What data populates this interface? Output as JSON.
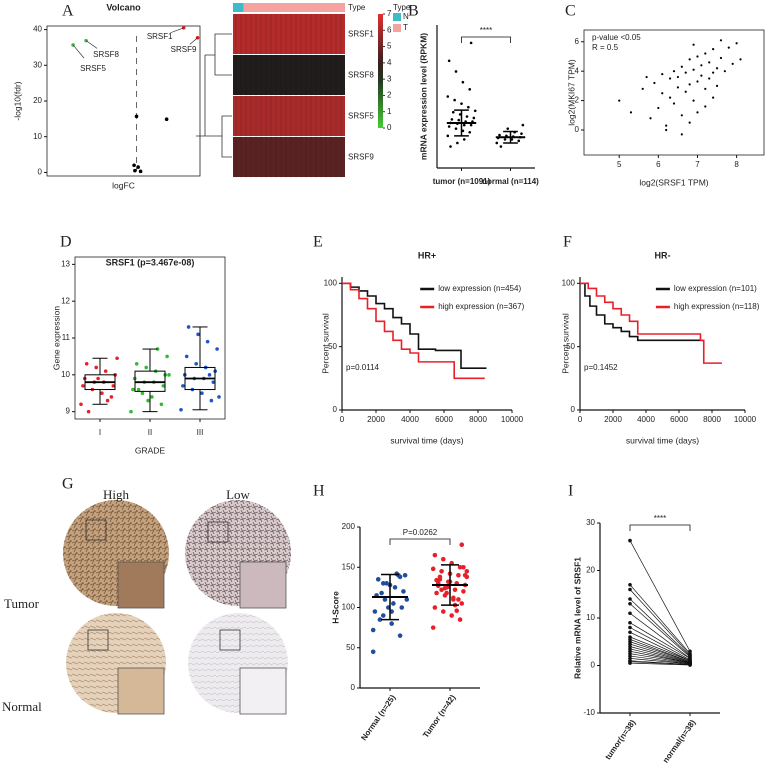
{
  "chart_data": [
    {
      "type": "scatter",
      "panel": "A",
      "title": "Volcano",
      "x_label": "logFC",
      "y_label": "-log10(fdr)",
      "frame": true,
      "xlim": [
        -1.1,
        0.78
      ],
      "ylim": [
        -1,
        41
      ],
      "yticks": [
        0,
        10,
        20,
        30,
        40
      ],
      "vline": 0,
      "x": [
        0.58,
        0.75,
        -0.62,
        -0.78,
        0,
        0.37,
        -0.03,
        0.02,
        0.05,
        -0.02
      ],
      "values": [
        40.5,
        37.7,
        36.9,
        35.7,
        15.7,
        14.9,
        2,
        1.5,
        0.3,
        0.5
      ],
      "colors": [
        "#e02020",
        "#e02020",
        "#44bb44",
        "#44bb44",
        "#000000",
        "#000000",
        "#000000",
        "#000000",
        "#000000",
        "#000000"
      ],
      "point_labels": [
        "SRSF1",
        "SRSF9",
        "SRSF8",
        "SRSF5",
        null,
        null,
        null,
        null,
        null,
        null
      ]
    },
    {
      "type": "heatmap",
      "rows": [
        "SRSF1",
        "SRSF8",
        "SRSF5",
        "SRSF9"
      ],
      "values": [
        6.2,
        3.6,
        6.0,
        4.6
      ],
      "annotation_label": "Type",
      "legend_title": "Type",
      "groups": [
        "N",
        "T"
      ],
      "group_sizes": [
        114,
        1091
      ],
      "group_colors": [
        "#3bbcc8",
        "#f4a3a0"
      ],
      "colorbar_ticks": [
        0,
        1,
        2,
        3,
        4,
        5,
        6,
        7
      ],
      "colorscale": [
        "#44cc33",
        "#1c1c1c",
        "#e03030"
      ]
    },
    {
      "type": "dot",
      "panel": "B",
      "y_label": "mRNA expression level (RPKM)",
      "ylim": [
        0,
        200
      ],
      "categories": [
        "tumor (n=1091)",
        "normal (n=114)"
      ],
      "values": [
        63,
        43
      ],
      "errors": [
        18,
        8
      ],
      "significance": "****",
      "colors": [
        "#000000",
        "#000000"
      ],
      "points": [
        [
          45,
          50,
          52,
          55,
          58,
          60,
          60,
          62,
          63,
          65,
          65,
          67,
          68,
          70,
          72,
          75,
          78,
          80,
          85,
          90,
          95,
          100,
          110,
          120,
          135,
          150,
          175,
          40,
          35,
          30
        ],
        [
          35,
          38,
          40,
          40,
          42,
          43,
          44,
          45,
          46,
          48,
          50,
          55,
          30,
          60
        ]
      ]
    },
    {
      "type": "scatter",
      "panel": "C",
      "x_label": "log2(SRSF1 TPM)",
      "y_label": "log2(MKI67 TPM)",
      "frame": true,
      "annotations": [
        "p-value <0.05",
        "R = 0.5"
      ],
      "color": "#000000",
      "xlim": [
        4.1,
        8.7
      ],
      "xticks": [
        5,
        6,
        7,
        8
      ],
      "ylim": [
        -1.7,
        6.8
      ],
      "yticks": [
        0,
        2,
        4,
        6
      ],
      "x": [
        5.0,
        5.3,
        5.6,
        5.8,
        5.9,
        6.0,
        6.1,
        6.1,
        6.2,
        6.3,
        6.3,
        6.4,
        6.4,
        6.5,
        6.5,
        6.6,
        6.6,
        6.7,
        6.7,
        6.8,
        6.8,
        6.9,
        6.9,
        7.0,
        7.0,
        7.1,
        7.1,
        7.2,
        7.2,
        7.3,
        7.3,
        7.4,
        7.4,
        7.5,
        7.5,
        7.6,
        7.7,
        7.8,
        7.9,
        8.0,
        8.1,
        6.2,
        6.6,
        7.0,
        7.4,
        5.7,
        6.9,
        7.6,
        7.2,
        6.8
      ],
      "values": [
        2.0,
        1.2,
        2.8,
        0.8,
        3.2,
        1.5,
        2.5,
        3.8,
        0.3,
        2.2,
        3.5,
        1.8,
        4.0,
        2.9,
        3.6,
        1.0,
        4.3,
        2.6,
        3.9,
        3.1,
        4.8,
        2.0,
        4.1,
        3.3,
        5.0,
        3.7,
        4.4,
        2.8,
        5.2,
        3.5,
        4.6,
        3.9,
        5.5,
        4.2,
        3.0,
        4.9,
        4.0,
        5.6,
        4.5,
        5.9,
        4.8,
        0.0,
        -0.3,
        1.2,
        2.2,
        3.6,
        5.8,
        6.1,
        1.6,
        0.5
      ]
    },
    {
      "type": "box",
      "panel": "D",
      "title": "SRSF1 (p=3.467e-08)",
      "x_label": "GRADE",
      "y_label": "Gene expression",
      "frame": true,
      "categories": [
        "I",
        "II",
        "III"
      ],
      "colors": [
        "#e8202a",
        "#33bb33",
        "#1f55c8"
      ],
      "ylim": [
        8.8,
        13.2
      ],
      "yticks": [
        9,
        10,
        11,
        12,
        13
      ],
      "whisker_low": [
        9.2,
        9.0,
        9.05
      ],
      "q1": [
        9.6,
        9.55,
        9.6
      ],
      "median": [
        9.8,
        9.8,
        9.9
      ],
      "q3": [
        10.0,
        10.1,
        10.2
      ],
      "whisker_high": [
        10.45,
        10.7,
        11.3
      ],
      "points": [
        [
          9.2,
          9.4,
          9.5,
          9.6,
          9.7,
          9.7,
          9.8,
          9.8,
          9.9,
          10.0,
          10.1,
          10.2,
          10.3,
          10.45,
          9.3,
          9.9,
          9.0
        ],
        [
          9.0,
          9.2,
          9.4,
          9.5,
          9.6,
          9.7,
          9.8,
          9.8,
          9.9,
          10.0,
          10.1,
          10.2,
          10.3,
          10.5,
          10.7,
          9.3,
          9.6,
          10.0
        ],
        [
          9.05,
          9.3,
          9.5,
          9.6,
          9.7,
          9.8,
          9.9,
          9.9,
          10.0,
          10.1,
          10.2,
          10.3,
          10.5,
          10.7,
          10.9,
          11.1,
          11.3,
          9.4,
          10.0
        ]
      ]
    },
    {
      "type": "line",
      "panel": "E",
      "title": "HR+",
      "x_label": "survival time (days)",
      "y_label": "Percent survival",
      "annotation": "p=0.0114",
      "legend": "upper right",
      "xlim": [
        0,
        10000
      ],
      "xticks": [
        0,
        2000,
        4000,
        6000,
        8000,
        10000
      ],
      "ylim": [
        0,
        105
      ],
      "yticks": [
        0,
        50,
        100
      ],
      "series": [
        {
          "name": "low expression (n=454)",
          "color": "#111111",
          "x": [
            0,
            500,
            1000,
            1500,
            2000,
            2500,
            3000,
            3500,
            4000,
            4500,
            5000,
            5500,
            6500,
            7000,
            8500
          ],
          "values": [
            100,
            97,
            94,
            90,
            84,
            80,
            73,
            68,
            60,
            48,
            48,
            47,
            47,
            33,
            33
          ]
        },
        {
          "name": "high expression (n=367)",
          "color": "#e8202a",
          "x": [
            0,
            500,
            1000,
            1500,
            2000,
            2500,
            3000,
            3500,
            4000,
            4500,
            5000,
            6500,
            6600,
            7500,
            8400
          ],
          "values": [
            100,
            95,
            88,
            80,
            70,
            62,
            55,
            48,
            45,
            38,
            38,
            38,
            25,
            25,
            25
          ]
        }
      ]
    },
    {
      "type": "line",
      "panel": "F",
      "title": "HR-",
      "x_label": "survival time (days)",
      "y_label": "Percent survival",
      "annotation": "p=0.1452",
      "legend": "upper right",
      "xlim": [
        0,
        10000
      ],
      "xticks": [
        0,
        2000,
        4000,
        6000,
        8000,
        10000
      ],
      "ylim": [
        0,
        105
      ],
      "yticks": [
        0,
        50,
        100
      ],
      "series": [
        {
          "name": "low expression (n=101)",
          "color": "#111111",
          "x": [
            0,
            300,
            600,
            1000,
            1500,
            2000,
            2500,
            3000,
            3500,
            7500
          ],
          "values": [
            100,
            90,
            82,
            75,
            68,
            65,
            62,
            58,
            55,
            55
          ]
        },
        {
          "name": "high expression (n=118)",
          "color": "#e8202a",
          "x": [
            0,
            500,
            1000,
            1500,
            2000,
            2500,
            3000,
            3500,
            7300,
            7500,
            8600
          ],
          "values": [
            100,
            96,
            90,
            85,
            80,
            75,
            70,
            60,
            55,
            37,
            37
          ]
        }
      ]
    },
    {
      "type": "dot",
      "panel": "H",
      "y_label": "H-Score",
      "ylim": [
        0,
        200
      ],
      "yticks": [
        0,
        50,
        100,
        150,
        200
      ],
      "categories": [
        "Normal (n=25)",
        "Tumor (n=42)"
      ],
      "values": [
        113,
        128
      ],
      "errors": [
        28,
        25
      ],
      "significance": "P=0.0262",
      "colors": [
        "#1f4e9c",
        "#e8202a"
      ],
      "points": [
        [
          45,
          65,
          80,
          90,
          95,
          100,
          105,
          110,
          115,
          120,
          125,
          130,
          135,
          140,
          142,
          100,
          85,
          110,
          140,
          128,
          118,
          72,
          138,
          95,
          130
        ],
        [
          75,
          85,
          90,
          95,
          100,
          105,
          110,
          115,
          118,
          120,
          122,
          125,
          127,
          128,
          130,
          132,
          135,
          138,
          140,
          142,
          145,
          148,
          150,
          155,
          160,
          165,
          178,
          112,
          124,
          134,
          150,
          103,
          118,
          130,
          140,
          96,
          126,
          138,
          145,
          110,
          132,
          122
        ]
      ]
    },
    {
      "type": "slope",
      "panel": "I",
      "y_label": "Relative mRNA level of SRSF1",
      "ylim": [
        -10,
        30
      ],
      "yticks": [
        -10,
        0,
        10,
        20,
        30
      ],
      "categories": [
        "tumor(n=38)",
        "normal(n=38)"
      ],
      "significance": "****",
      "color": "#111111",
      "values": [
        [
          26.3,
          3
        ],
        [
          17,
          2.5
        ],
        [
          16,
          2.2
        ],
        [
          14,
          2
        ],
        [
          13,
          1.8
        ],
        [
          11,
          1.5
        ],
        [
          9,
          1.5
        ],
        [
          8,
          1.2
        ],
        [
          7,
          1
        ],
        [
          6,
          1
        ],
        [
          5.5,
          0.8
        ],
        [
          5,
          0.8
        ],
        [
          4.5,
          0.7
        ],
        [
          4,
          0.6
        ],
        [
          3.5,
          0.5
        ],
        [
          3,
          0.5
        ],
        [
          2.5,
          0.4
        ],
        [
          2,
          0.3
        ],
        [
          1.5,
          0.3
        ],
        [
          1,
          0.2
        ],
        [
          0.8,
          0.2
        ],
        [
          0.5,
          0.1
        ]
      ]
    }
  ],
  "image_panel": {
    "panel": "G",
    "columns": [
      "High",
      "Low"
    ],
    "rows": [
      "Tumor",
      "Normal"
    ]
  }
}
